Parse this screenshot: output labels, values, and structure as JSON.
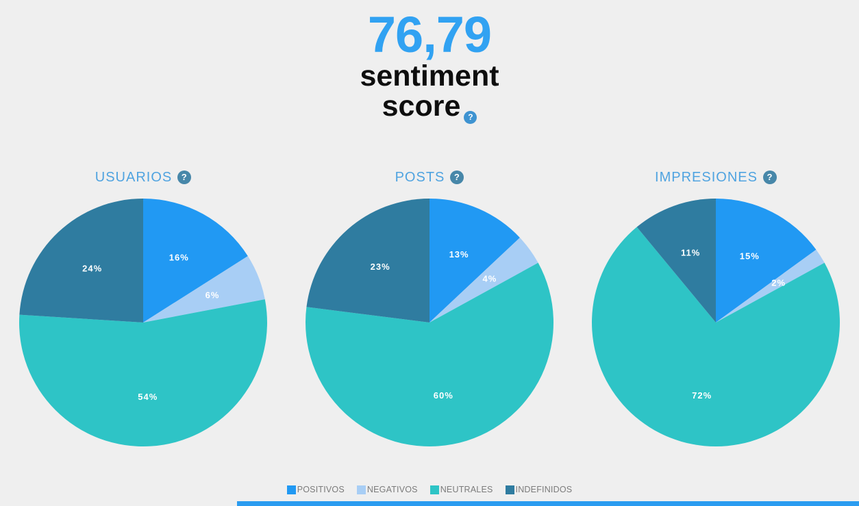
{
  "colors": {
    "background": "#EFEFEF",
    "score_number": "#31A2F2",
    "score_text": "#0E0E0E",
    "chart_title": "#4FA3E0",
    "help_icon_header": "#3E93D1",
    "help_icon_chart": "#4787A9",
    "legend_text": "#7B7B7B",
    "slice_label_text": "#FFFFFF",
    "footer_bar": "#2B9CF0"
  },
  "header": {
    "score_value": "76,79",
    "score_label_line1": "sentiment",
    "score_label_line2": "score",
    "help_icon": "?"
  },
  "legend": {
    "position": "bottom-center",
    "items": [
      {
        "label": "POSITIVOS",
        "color": "#2199F3"
      },
      {
        "label": "NEGATIVOS",
        "color": "#A8CEF5"
      },
      {
        "label": "NEUTRALES",
        "color": "#2EC4C6"
      },
      {
        "label": "INDEFINIDOS",
        "color": "#2F7CA0"
      }
    ]
  },
  "chart_data": [
    {
      "type": "pie",
      "title": "USUARIOS",
      "categories": [
        "POSITIVOS",
        "NEGATIVOS",
        "NEUTRALES",
        "INDEFINIDOS"
      ],
      "values": [
        16,
        6,
        54,
        24
      ],
      "labels": [
        "16%",
        "6%",
        "54%",
        "24%"
      ],
      "colors": [
        "#2199F3",
        "#A8CEF5",
        "#2EC4C6",
        "#2F7CA0"
      ],
      "start_angle_deg": 0,
      "direction": "clockwise",
      "label_radius_ratio": 0.6
    },
    {
      "type": "pie",
      "title": "POSTS",
      "categories": [
        "POSITIVOS",
        "NEGATIVOS",
        "NEUTRALES",
        "INDEFINIDOS"
      ],
      "values": [
        13,
        4,
        60,
        23
      ],
      "labels": [
        "13%",
        "4%",
        "60%",
        "23%"
      ],
      "colors": [
        "#2199F3",
        "#A8CEF5",
        "#2EC4C6",
        "#2F7CA0"
      ],
      "start_angle_deg": 0,
      "direction": "clockwise",
      "label_radius_ratio": 0.6
    },
    {
      "type": "pie",
      "title": "IMPRESIONES",
      "categories": [
        "POSITIVOS",
        "NEGATIVOS",
        "NEUTRALES",
        "INDEFINIDOS"
      ],
      "values": [
        15,
        2,
        72,
        11
      ],
      "labels": [
        "15%",
        "2%",
        "72%",
        "11%"
      ],
      "colors": [
        "#2199F3",
        "#A8CEF5",
        "#2EC4C6",
        "#2F7CA0"
      ],
      "start_angle_deg": 0,
      "direction": "clockwise",
      "label_radius_ratio": 0.6
    }
  ],
  "footer": {
    "bar_visible": true
  }
}
